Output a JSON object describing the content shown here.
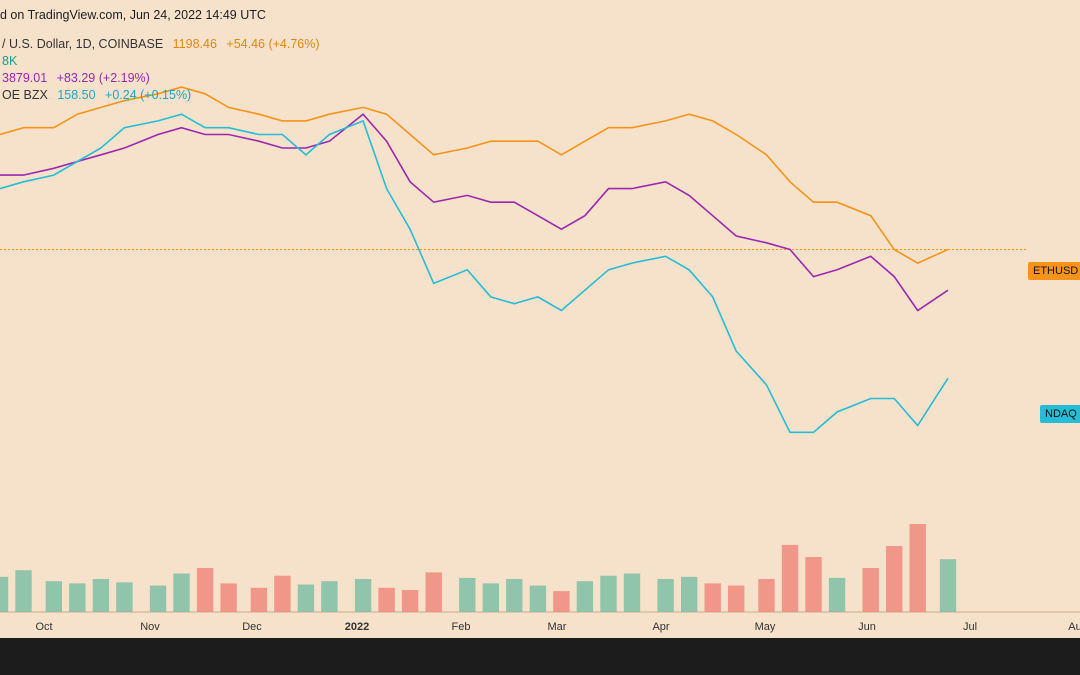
{
  "header": {
    "source": "d on TradingView.com, Jun 24, 2022 14:49 UTC",
    "eth": {
      "label": "/ U.S. Dollar, 1D, COINBASE",
      "price": "1198.46",
      "change": "+54.46 (+4.76%)"
    },
    "vol": {
      "label": "8K"
    },
    "purple": {
      "price": "3879.01",
      "change": "+83.29 (+2.19%)"
    },
    "ndaq": {
      "label": "OE BZX",
      "price": "158.50",
      "change": "+0.24 (+0.15%)"
    }
  },
  "colors": {
    "background": "#f6e2ca",
    "eth": "#f7931a",
    "purple": "#9c27b0",
    "ndaq": "#26bcd7",
    "vol_up": "#7fbfa6",
    "vol_down": "#ef8a7f"
  },
  "tags": {
    "eth": "ETHUSD",
    "ndaq": "NDAQ"
  },
  "chart_data": {
    "type": "line",
    "x": [
      "2021-09-15",
      "2021-09-22",
      "2021-10-01",
      "2021-10-08",
      "2021-10-15",
      "2021-10-22",
      "2021-11-01",
      "2021-11-08",
      "2021-11-15",
      "2021-11-22",
      "2021-12-01",
      "2021-12-08",
      "2021-12-15",
      "2021-12-22",
      "2022-01-01",
      "2022-01-08",
      "2022-01-15",
      "2022-01-22",
      "2022-02-01",
      "2022-02-08",
      "2022-02-15",
      "2022-02-22",
      "2022-03-01",
      "2022-03-08",
      "2022-03-15",
      "2022-03-22",
      "2022-04-01",
      "2022-04-08",
      "2022-04-15",
      "2022-04-22",
      "2022-05-01",
      "2022-05-08",
      "2022-05-15",
      "2022-05-22",
      "2022-06-01",
      "2022-06-08",
      "2022-06-15",
      "2022-06-24"
    ],
    "x_ticks": [
      "Oct",
      "Nov",
      "Dec",
      "2022",
      "Feb",
      "Mar",
      "Apr",
      "May",
      "Jun",
      "Jul",
      "Au"
    ],
    "series": [
      {
        "name": "ETHUSD",
        "values": [
          94,
          95,
          95,
          97,
          98,
          99,
          100,
          101,
          100,
          98,
          97,
          96,
          96,
          97,
          98,
          97,
          94,
          91,
          92,
          93,
          93,
          93,
          91,
          93,
          95,
          95,
          96,
          97,
          96,
          94,
          91,
          87,
          84,
          84,
          82,
          77,
          75,
          77
        ]
      },
      {
        "name": "",
        "values": [
          88,
          88,
          89,
          90,
          91,
          92,
          94,
          95,
          94,
          94,
          93,
          92,
          92,
          93,
          97,
          93,
          87,
          84,
          85,
          84,
          84,
          82,
          80,
          82,
          86,
          86,
          87,
          85,
          82,
          79,
          78,
          77,
          73,
          74,
          76,
          73,
          68,
          71
        ]
      },
      {
        "name": "NDAQ",
        "values": [
          86,
          87,
          88,
          90,
          92,
          95,
          96,
          97,
          95,
          95,
          94,
          94,
          91,
          94,
          96,
          86,
          80,
          72,
          74,
          70,
          69,
          70,
          68,
          71,
          74,
          75,
          76,
          74,
          70,
          62,
          57,
          50,
          50,
          53,
          55,
          55,
          51,
          58
        ]
      }
    ],
    "volume": [
      32,
      38,
      28,
      26,
      30,
      27,
      24,
      35,
      40,
      26,
      22,
      33,
      25,
      28,
      30,
      22,
      20,
      36,
      31,
      26,
      30,
      24,
      19,
      28,
      33,
      35,
      30,
      32,
      26,
      24,
      30,
      61,
      50,
      31,
      40,
      60,
      80,
      48
    ],
    "tags": [
      "ETHUSD",
      "NDAQ"
    ],
    "ylim": [
      40,
      105
    ]
  }
}
